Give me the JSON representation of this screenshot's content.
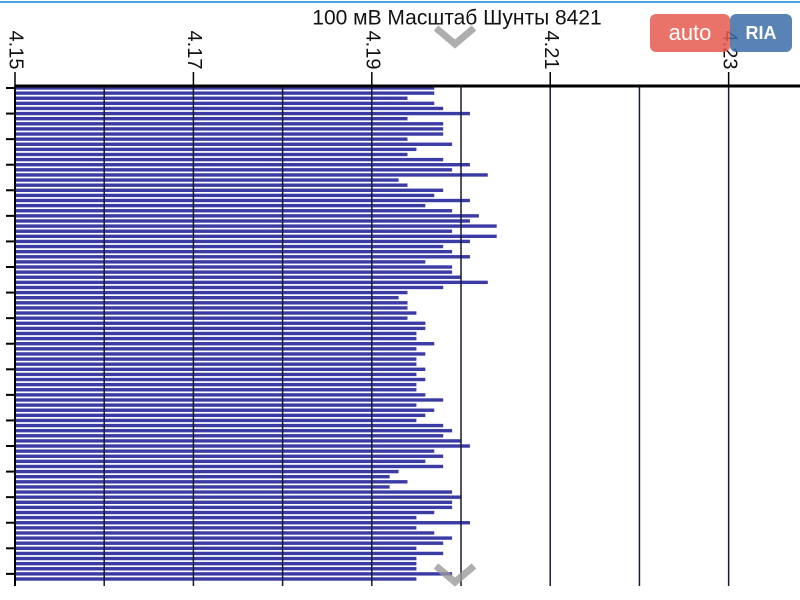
{
  "chart_data": {
    "type": "bar",
    "orientation": "horizontal",
    "title": "100 мВ Масштаб   Шунты 8421",
    "color": "#3b3ba6",
    "values": [
      4.197,
      4.197,
      4.194,
      4.197,
      4.198,
      4.201,
      4.194,
      4.198,
      4.198,
      4.198,
      4.194,
      4.199,
      4.195,
      4.194,
      4.198,
      4.201,
      4.199,
      4.203,
      4.193,
      4.194,
      4.198,
      4.197,
      4.201,
      4.196,
      4.199,
      4.202,
      4.201,
      4.204,
      4.199,
      4.204,
      4.201,
      4.198,
      4.199,
      4.201,
      4.196,
      4.199,
      4.199,
      4.2,
      4.203,
      4.198,
      4.194,
      4.193,
      4.194,
      4.194,
      4.195,
      4.194,
      4.196,
      4.196,
      4.195,
      4.195,
      4.197,
      4.195,
      4.196,
      4.195,
      4.195,
      4.196,
      4.195,
      4.196,
      4.195,
      4.195,
      4.196,
      4.198,
      4.195,
      4.197,
      4.196,
      4.195,
      4.198,
      4.199,
      4.198,
      4.2,
      4.201,
      4.197,
      4.198,
      4.196,
      4.198,
      4.193,
      4.192,
      4.194,
      4.192,
      4.199,
      4.2,
      4.199,
      4.199,
      4.197,
      4.195,
      4.201,
      4.195,
      4.197,
      4.199,
      4.198,
      4.195,
      4.198,
      4.195,
      4.195,
      4.195,
      4.199,
      4.195
    ],
    "xlim": [
      4.15,
      4.238
    ],
    "xticks": [
      4.15,
      4.17,
      4.19,
      4.21,
      4.23
    ],
    "xgrid": [
      4.16,
      4.17,
      4.18,
      4.19,
      4.2,
      4.21,
      4.22,
      4.23
    ],
    "logo": [
      "auto",
      "RIA"
    ]
  }
}
